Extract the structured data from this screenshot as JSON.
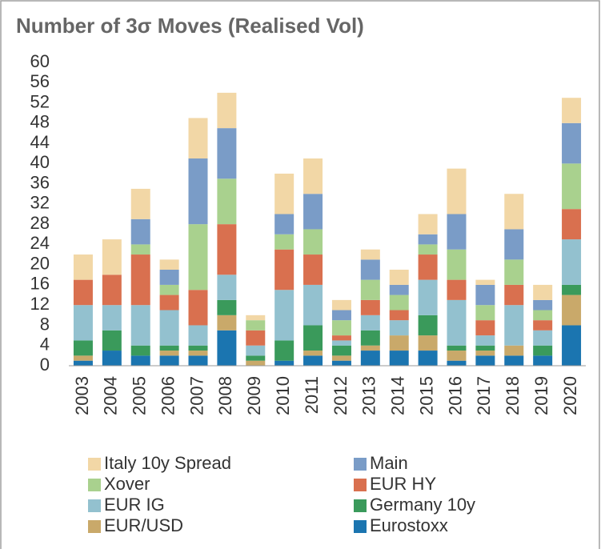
{
  "chart_data": {
    "type": "stacked_bar",
    "title": "Number of 3σ Moves (Realised Vol)",
    "categories": [
      "2003",
      "2004",
      "2005",
      "2006",
      "2007",
      "2008",
      "2009",
      "2010",
      "2011",
      "2012",
      "2013",
      "2014",
      "2015",
      "2016",
      "2017",
      "2018",
      "2019",
      "2020"
    ],
    "series": [
      {
        "name": "Eurostoxx",
        "color": "#1b75b0",
        "values": [
          1,
          3,
          2,
          2,
          2,
          7,
          0,
          1,
          2,
          1,
          3,
          3,
          3,
          1,
          2,
          2,
          2,
          8
        ]
      },
      {
        "name": "EUR/USD",
        "color": "#c9a96a",
        "values": [
          1,
          0,
          0,
          1,
          1,
          3,
          1,
          0,
          1,
          1,
          1,
          3,
          3,
          2,
          1,
          2,
          0,
          6
        ]
      },
      {
        "name": "Germany 10y",
        "color": "#3a9a5b",
        "values": [
          3,
          4,
          2,
          1,
          1,
          3,
          1,
          4,
          5,
          2,
          3,
          0,
          4,
          1,
          1,
          0,
          2,
          2
        ]
      },
      {
        "name": "EUR IG",
        "color": "#93c1cf",
        "values": [
          7,
          5,
          8,
          7,
          4,
          5,
          2,
          10,
          8,
          1,
          3,
          3,
          7,
          9,
          2,
          8,
          3,
          9
        ]
      },
      {
        "name": "EUR HY",
        "color": "#d9704f",
        "values": [
          5,
          6,
          10,
          3,
          7,
          10,
          3,
          8,
          6,
          1,
          3,
          2,
          5,
          4,
          3,
          4,
          2,
          6
        ]
      },
      {
        "name": "Xover",
        "color": "#a9d18e",
        "values": [
          0,
          0,
          2,
          2,
          13,
          9,
          2,
          3,
          5,
          3,
          4,
          3,
          2,
          6,
          3,
          5,
          2,
          9
        ]
      },
      {
        "name": "Main",
        "color": "#7a9cc7",
        "values": [
          0,
          0,
          5,
          3,
          13,
          10,
          0,
          4,
          7,
          2,
          4,
          2,
          2,
          7,
          4,
          6,
          2,
          8
        ]
      },
      {
        "name": "Italy 10y Spread",
        "color": "#f2d7a6",
        "values": [
          5,
          7,
          6,
          2,
          8,
          7,
          1,
          8,
          7,
          2,
          2,
          3,
          4,
          9,
          1,
          7,
          3,
          5
        ]
      }
    ],
    "ylim": [
      0,
      60
    ],
    "yticks": [
      0,
      4,
      8,
      12,
      16,
      20,
      24,
      28,
      32,
      36,
      40,
      44,
      48,
      52,
      56,
      60
    ],
    "grid": false
  }
}
